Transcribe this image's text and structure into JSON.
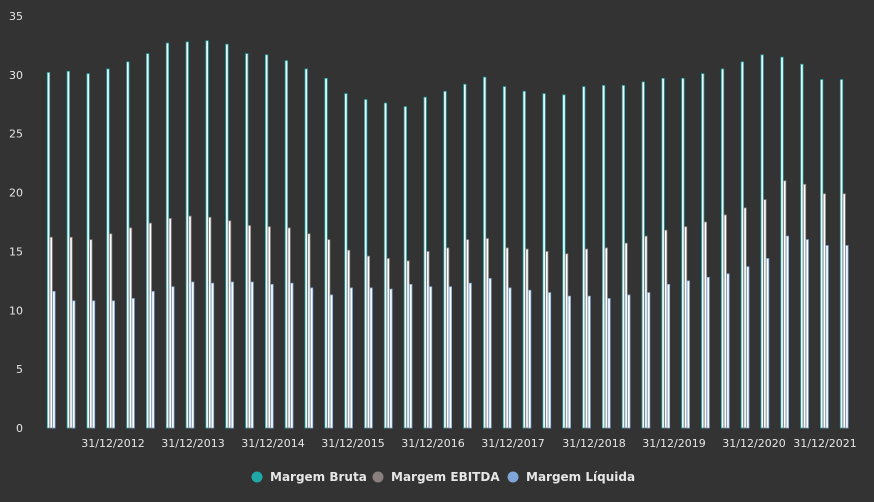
{
  "chart_data": {
    "type": "bar",
    "title": "",
    "xlabel": "",
    "ylabel": "",
    "ylim": [
      0,
      35
    ],
    "yticks": [
      0,
      5,
      10,
      15,
      20,
      25,
      30,
      35
    ],
    "grid": false,
    "legend_position": "bottom-center",
    "background": "#333333",
    "xtick_labels": [
      "31/12/2012",
      "31/12/2013",
      "31/12/2014",
      "31/12/2015",
      "31/12/2016",
      "31/12/2017",
      "31/12/2018",
      "31/12/2019",
      "31/12/2020",
      "31/12/2021"
    ],
    "series": [
      {
        "name": "Margem Bruta",
        "color": "#1fa8a8",
        "values": [
          30.2,
          30.3,
          30.1,
          30.5,
          31.1,
          31.8,
          32.7,
          32.8,
          32.9,
          32.6,
          31.8,
          31.7,
          31.2,
          30.5,
          29.7,
          28.4,
          27.9,
          27.6,
          27.3,
          28.1,
          28.6,
          29.2,
          29.8,
          29.0,
          28.6,
          28.4,
          28.3,
          29.0,
          29.1,
          29.1,
          29.4,
          29.7,
          29.7,
          30.1,
          30.5,
          31.1,
          31.7,
          31.5,
          30.9,
          29.6,
          29.6
        ]
      },
      {
        "name": "Margem EBITDA",
        "color": "#8a7f7f",
        "values": [
          16.2,
          16.2,
          16.0,
          16.5,
          17.0,
          17.4,
          17.8,
          18.0,
          17.9,
          17.6,
          17.2,
          17.1,
          17.0,
          16.5,
          16.0,
          15.1,
          14.6,
          14.4,
          14.2,
          15.0,
          15.3,
          16.0,
          16.1,
          15.3,
          15.2,
          15.0,
          14.8,
          15.2,
          15.3,
          15.7,
          16.3,
          16.8,
          17.1,
          17.5,
          18.1,
          18.7,
          19.4,
          21.0,
          20.7,
          19.9,
          19.9
        ]
      },
      {
        "name": "Margem Líquida",
        "color": "#7fa6d8",
        "values": [
          11.6,
          10.8,
          10.8,
          10.8,
          11.0,
          11.6,
          12.0,
          12.4,
          12.3,
          12.4,
          12.4,
          12.2,
          12.3,
          11.9,
          11.3,
          11.9,
          11.9,
          11.8,
          12.2,
          12.0,
          12.0,
          12.3,
          12.7,
          11.9,
          11.7,
          11.5,
          11.2,
          11.2,
          11.0,
          11.3,
          11.5,
          12.2,
          12.5,
          12.8,
          13.1,
          13.7,
          14.4,
          16.3,
          16.0,
          15.5,
          15.5
        ]
      }
    ]
  }
}
